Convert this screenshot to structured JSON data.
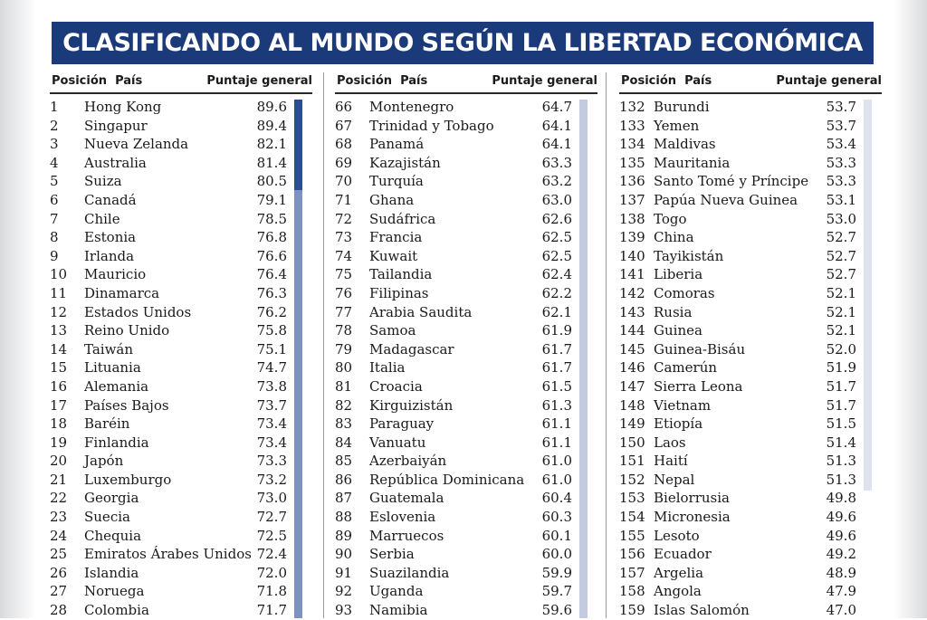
{
  "title": "CLASIFICANDO AL MUNDO SEGÚN LA LIBERTAD ECONÓMICA",
  "headers": {
    "position": "Posición",
    "country": "País",
    "score": "Puntaje general"
  },
  "colors": {
    "banner": "#1b3a7a",
    "bar_dark": "#2b4d91",
    "bar_mid": "#7e92bf",
    "bar_light": "#c3cbe0",
    "bar_pale": "#dfe3ee"
  },
  "columns": [
    {
      "rows": [
        {
          "rank": "1",
          "country": "Hong Kong",
          "score": "89.6"
        },
        {
          "rank": "2",
          "country": "Singapur",
          "score": "89.4"
        },
        {
          "rank": "3",
          "country": "Nueva Zelanda",
          "score": "82.1"
        },
        {
          "rank": "4",
          "country": "Australia",
          "score": "81.4"
        },
        {
          "rank": "5",
          "country": "Suiza",
          "score": "80.5"
        },
        {
          "rank": "6",
          "country": "Canadá",
          "score": "79.1"
        },
        {
          "rank": "7",
          "country": "Chile",
          "score": "78.5"
        },
        {
          "rank": "8",
          "country": "Estonia",
          "score": "76.8"
        },
        {
          "rank": "9",
          "country": "Irlanda",
          "score": "76.6"
        },
        {
          "rank": "10",
          "country": "Mauricio",
          "score": "76.4"
        },
        {
          "rank": "11",
          "country": "Dinamarca",
          "score": "76.3"
        },
        {
          "rank": "12",
          "country": "Estados Unidos",
          "score": "76.2"
        },
        {
          "rank": "13",
          "country": "Reino Unido",
          "score": "75.8"
        },
        {
          "rank": "14",
          "country": "Taiwán",
          "score": "75.1"
        },
        {
          "rank": "15",
          "country": "Lituania",
          "score": "74.7"
        },
        {
          "rank": "16",
          "country": "Alemania",
          "score": "73.8"
        },
        {
          "rank": "17",
          "country": "Países Bajos",
          "score": "73.7"
        },
        {
          "rank": "18",
          "country": "Baréin",
          "score": "73.4"
        },
        {
          "rank": "19",
          "country": "Finlandia",
          "score": "73.4"
        },
        {
          "rank": "20",
          "country": "Japón",
          "score": "73.3"
        },
        {
          "rank": "21",
          "country": "Luxemburgo",
          "score": "73.2"
        },
        {
          "rank": "22",
          "country": "Georgia",
          "score": "73.0"
        },
        {
          "rank": "23",
          "country": "Suecia",
          "score": "72.7"
        },
        {
          "rank": "24",
          "country": "Chequia",
          "score": "72.5"
        },
        {
          "rank": "25",
          "country": "Emiratos Árabes Unidos",
          "score": "72.4"
        },
        {
          "rank": "26",
          "country": "Islandia",
          "score": "72.0"
        },
        {
          "rank": "27",
          "country": "Noruega",
          "score": "71.8"
        },
        {
          "rank": "28",
          "country": "Colombia",
          "score": "71.7"
        }
      ]
    },
    {
      "rows": [
        {
          "rank": "66",
          "country": "Montenegro",
          "score": "64.7"
        },
        {
          "rank": "67",
          "country": "Trinidad y Tobago",
          "score": "64.1"
        },
        {
          "rank": "68",
          "country": "Panamá",
          "score": "64.1"
        },
        {
          "rank": "69",
          "country": "Kazajistán",
          "score": "63.3"
        },
        {
          "rank": "70",
          "country": "Turquía",
          "score": "63.2"
        },
        {
          "rank": "71",
          "country": "Ghana",
          "score": "63.0"
        },
        {
          "rank": "72",
          "country": "Sudáfrica",
          "score": "62.6"
        },
        {
          "rank": "73",
          "country": "Francia",
          "score": "62.5"
        },
        {
          "rank": "74",
          "country": "Kuwait",
          "score": "62.5"
        },
        {
          "rank": "75",
          "country": "Tailandia",
          "score": "62.4"
        },
        {
          "rank": "76",
          "country": "Filipinas",
          "score": "62.2"
        },
        {
          "rank": "77",
          "country": "Arabia Saudita",
          "score": "62.1"
        },
        {
          "rank": "78",
          "country": "Samoa",
          "score": "61.9"
        },
        {
          "rank": "79",
          "country": "Madagascar",
          "score": "61.7"
        },
        {
          "rank": "80",
          "country": "Italia",
          "score": "61.7"
        },
        {
          "rank": "81",
          "country": "Croacia",
          "score": "61.5"
        },
        {
          "rank": "82",
          "country": "Kirguizistán",
          "score": "61.3"
        },
        {
          "rank": "83",
          "country": "Paraguay",
          "score": "61.1"
        },
        {
          "rank": "84",
          "country": "Vanuatu",
          "score": "61.1"
        },
        {
          "rank": "85",
          "country": "Azerbaiyán",
          "score": "61.0"
        },
        {
          "rank": "86",
          "country": "República Dominicana",
          "score": "61.0"
        },
        {
          "rank": "87",
          "country": "Guatemala",
          "score": "60.4"
        },
        {
          "rank": "88",
          "country": "Eslovenia",
          "score": "60.3"
        },
        {
          "rank": "89",
          "country": "Marruecos",
          "score": "60.1"
        },
        {
          "rank": "90",
          "country": "Serbia",
          "score": "60.0"
        },
        {
          "rank": "91",
          "country": "Suazilandia",
          "score": "59.9"
        },
        {
          "rank": "92",
          "country": "Uganda",
          "score": "59.7"
        },
        {
          "rank": "93",
          "country": "Namibia",
          "score": "59.6"
        }
      ]
    },
    {
      "rows": [
        {
          "rank": "132",
          "country": "Burundi",
          "score": "53.7"
        },
        {
          "rank": "133",
          "country": "Yemen",
          "score": "53.7"
        },
        {
          "rank": "134",
          "country": "Maldivas",
          "score": "53.4"
        },
        {
          "rank": "135",
          "country": "Mauritania",
          "score": "53.3"
        },
        {
          "rank": "136",
          "country": "Santo Tomé y Príncipe",
          "score": "53.3"
        },
        {
          "rank": "137",
          "country": "Papúa Nueva Guinea",
          "score": "53.1"
        },
        {
          "rank": "138",
          "country": "Togo",
          "score": "53.0"
        },
        {
          "rank": "139",
          "country": "China",
          "score": "52.7"
        },
        {
          "rank": "140",
          "country": "Tayikistán",
          "score": "52.7"
        },
        {
          "rank": "141",
          "country": "Liberia",
          "score": "52.7"
        },
        {
          "rank": "142",
          "country": "Comoras",
          "score": "52.1"
        },
        {
          "rank": "143",
          "country": "Rusia",
          "score": "52.1"
        },
        {
          "rank": "144",
          "country": "Guinea",
          "score": "52.1"
        },
        {
          "rank": "145",
          "country": "Guinea-Bisáu",
          "score": "52.0"
        },
        {
          "rank": "146",
          "country": "Camerún",
          "score": "51.9"
        },
        {
          "rank": "147",
          "country": "Sierra Leona",
          "score": "51.7"
        },
        {
          "rank": "148",
          "country": "Vietnam",
          "score": "51.7"
        },
        {
          "rank": "149",
          "country": "Etiopía",
          "score": "51.5"
        },
        {
          "rank": "150",
          "country": "Laos",
          "score": "51.4"
        },
        {
          "rank": "151",
          "country": "Haití",
          "score": "51.3"
        },
        {
          "rank": "152",
          "country": "Nepal",
          "score": "51.3"
        },
        {
          "rank": "153",
          "country": "Bielorrusia",
          "score": "49.8"
        },
        {
          "rank": "154",
          "country": "Micronesia",
          "score": "49.6"
        },
        {
          "rank": "155",
          "country": "Lesoto",
          "score": "49.6"
        },
        {
          "rank": "156",
          "country": "Ecuador",
          "score": "49.2"
        },
        {
          "rank": "157",
          "country": "Argelia",
          "score": "48.9"
        },
        {
          "rank": "158",
          "country": "Angola",
          "score": "47.9"
        },
        {
          "rank": "159",
          "country": "Islas Salomón",
          "score": "47.0"
        }
      ]
    }
  ]
}
